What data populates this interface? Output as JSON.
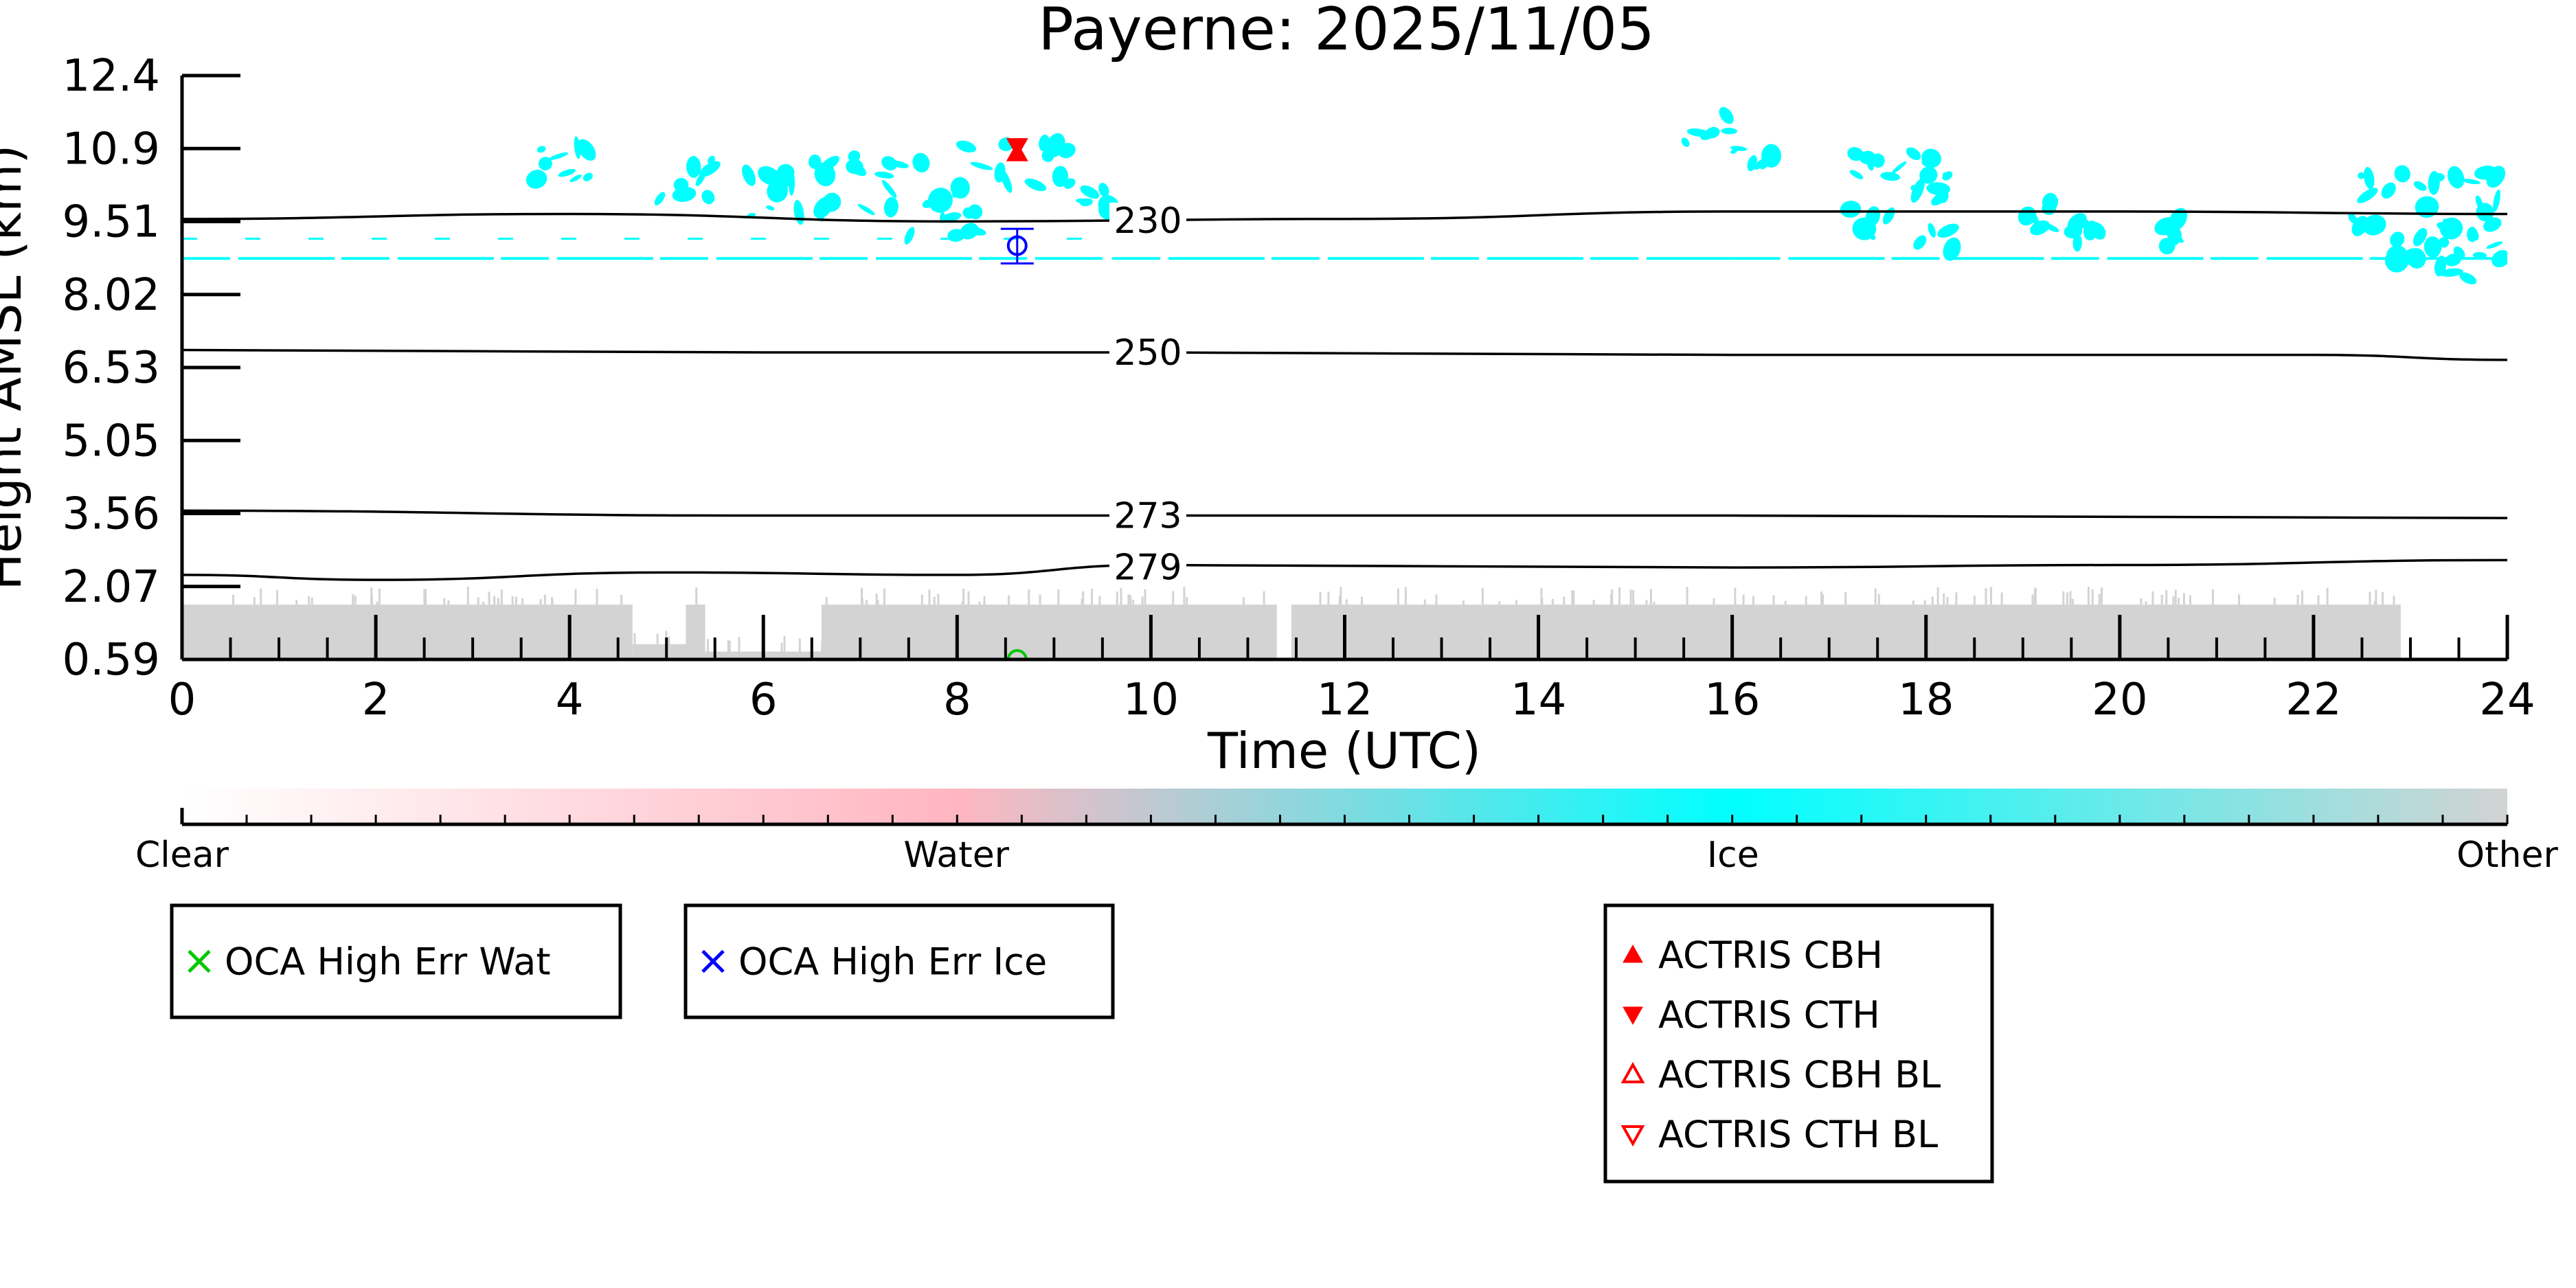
{
  "chart_data": {
    "type": "heatmap",
    "title": "Payerne: 2025/11/05",
    "xlabel": "Time (UTC)",
    "ylabel": "Height AMSL (km)",
    "xlim": [
      0,
      24
    ],
    "ylim": [
      0.59,
      12.4
    ],
    "x_ticks": [
      "0",
      "2",
      "4",
      "6",
      "8",
      "10",
      "12",
      "14",
      "16",
      "18",
      "20",
      "22",
      "24"
    ],
    "y_ticks": [
      "0.59",
      "2.07",
      "3.56",
      "5.05",
      "6.53",
      "8.02",
      "9.51",
      "10.9",
      "12.4"
    ],
    "grid": false,
    "colors": {
      "clear": "#ffffff",
      "water": "#ffb6c1",
      "ice": "#00ffff",
      "other": "#d3d3d3",
      "contour": "#000000",
      "actris": "#ff0000",
      "oca_ice": "#0000ff",
      "oca_water": "#00c800"
    },
    "contours": [
      {
        "label": "230",
        "label_x": 9.6,
        "points": [
          [
            0,
            9.5
          ],
          [
            4,
            9.6
          ],
          [
            8,
            9.45
          ],
          [
            12,
            9.5
          ],
          [
            16,
            9.65
          ],
          [
            20,
            9.65
          ],
          [
            24,
            9.6
          ]
        ]
      },
      {
        "label": "250",
        "label_x": 9.6,
        "points": [
          [
            0,
            6.85
          ],
          [
            6,
            6.8
          ],
          [
            10,
            6.8
          ],
          [
            16,
            6.75
          ],
          [
            22,
            6.75
          ],
          [
            24,
            6.65
          ]
        ]
      },
      {
        "label": "273",
        "label_x": 9.6,
        "points": [
          [
            0,
            3.6
          ],
          [
            6,
            3.5
          ],
          [
            10,
            3.5
          ],
          [
            16,
            3.5
          ],
          [
            24,
            3.45
          ]
        ]
      },
      {
        "label": "279",
        "label_x": 9.6,
        "points": [
          [
            0,
            2.3
          ],
          [
            2,
            2.2
          ],
          [
            5,
            2.35
          ],
          [
            8,
            2.3
          ],
          [
            10,
            2.5
          ],
          [
            16,
            2.45
          ],
          [
            20,
            2.5
          ],
          [
            24,
            2.6
          ]
        ]
      }
    ],
    "ice_clouds": [
      {
        "x0": 3.5,
        "x1": 4.3,
        "y0": 10.0,
        "y1": 11.0
      },
      {
        "x0": 4.9,
        "x1": 5.6,
        "y0": 9.8,
        "y1": 10.9
      },
      {
        "x0": 5.8,
        "x1": 7.7,
        "y0": 9.5,
        "y1": 10.8
      },
      {
        "x0": 7.5,
        "x1": 8.2,
        "y0": 9.1,
        "y1": 10.6
      },
      {
        "x0": 8.0,
        "x1": 9.2,
        "y0": 10.1,
        "y1": 11.1
      },
      {
        "x0": 9.3,
        "x1": 9.6,
        "y0": 9.6,
        "y1": 10.1
      },
      {
        "x0": 15.5,
        "x1": 16.0,
        "y0": 11.0,
        "y1": 11.6
      },
      {
        "x0": 16.0,
        "x1": 16.6,
        "y0": 10.5,
        "y1": 11.3
      },
      {
        "x0": 17.2,
        "x1": 18.3,
        "y0": 8.8,
        "y1": 11.0
      },
      {
        "x0": 19.0,
        "x1": 19.3,
        "y0": 9.3,
        "y1": 9.9
      },
      {
        "x0": 19.5,
        "x1": 19.8,
        "y0": 9.0,
        "y1": 9.7
      },
      {
        "x0": 20.3,
        "x1": 20.8,
        "y0": 8.8,
        "y1": 9.5
      },
      {
        "x0": 22.4,
        "x1": 24.0,
        "y0": 8.6,
        "y1": 10.5
      },
      {
        "x0": 22.9,
        "x1": 23.7,
        "y0": 8.2,
        "y1": 9.4
      }
    ],
    "ice_layer_height": 8.7,
    "ice_layer_segments": [
      [
        0,
        9.5
      ],
      [
        9.6,
        16.0
      ],
      [
        16.0,
        24.0
      ]
    ],
    "other_blocks": [
      {
        "x0": 0.0,
        "x1": 4.65,
        "y0": 0.59,
        "y1": 1.7
      },
      {
        "x0": 4.65,
        "x1": 5.2,
        "y0": 0.59,
        "y1": 0.9
      },
      {
        "x0": 5.2,
        "x1": 5.4,
        "y0": 0.59,
        "y1": 1.7
      },
      {
        "x0": 5.4,
        "x1": 6.6,
        "y0": 0.59,
        "y1": 0.75
      },
      {
        "x0": 6.6,
        "x1": 11.3,
        "y0": 0.59,
        "y1": 1.7
      },
      {
        "x0": 11.45,
        "x1": 22.9,
        "y0": 0.59,
        "y1": 1.7
      }
    ],
    "actris_marker": {
      "x": 8.62,
      "cbh": 10.75,
      "cth": 11.05
    },
    "oca_ice_point": {
      "x": 8.62,
      "y": 8.96,
      "err_low": 8.6,
      "err_high": 9.3
    },
    "oca_water_point": {
      "x": 8.62,
      "y": 0.59
    },
    "colorbar": {
      "labels": [
        "Clear",
        "Water",
        "Ice",
        "Other"
      ],
      "positions": [
        0,
        0.333,
        0.667,
        1.0
      ]
    },
    "legends": [
      {
        "entries": [
          {
            "label": "OCA High Err Wat",
            "marker": "x",
            "color": "#00c800"
          }
        ]
      },
      {
        "entries": [
          {
            "label": "OCA High Err Ice",
            "marker": "x",
            "color": "#0000ff"
          }
        ]
      },
      {
        "entries": [
          {
            "label": "ACTRIS CBH",
            "marker": "triangle-up",
            "color": "#ff0000"
          },
          {
            "label": "ACTRIS CTH",
            "marker": "triangle-down",
            "color": "#ff0000"
          },
          {
            "label": "ACTRIS CBH BL",
            "marker": "triangle-up-open",
            "color": "#ff0000"
          },
          {
            "label": "ACTRIS CTH BL",
            "marker": "triangle-down-open",
            "color": "#ff0000"
          }
        ]
      }
    ]
  }
}
